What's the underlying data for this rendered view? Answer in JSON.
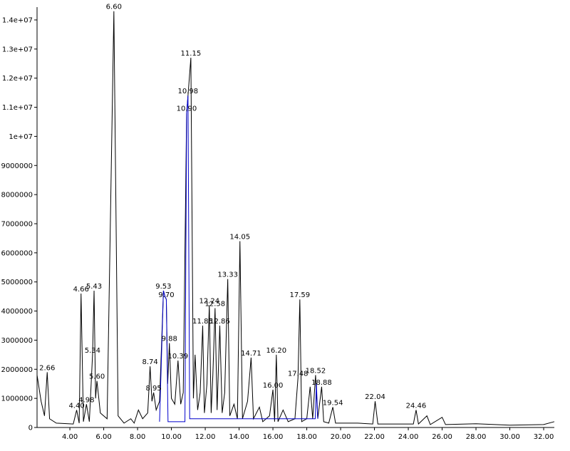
{
  "chart_data": {
    "type": "line",
    "xlim": [
      2.06,
      32.63
    ],
    "ylim": [
      0,
      14440000
    ],
    "xticks": [
      {
        "value": 4,
        "label": "4.00"
      },
      {
        "value": 6,
        "label": "6.00"
      },
      {
        "value": 8,
        "label": "8.00"
      },
      {
        "value": 10,
        "label": "10.00"
      },
      {
        "value": 12,
        "label": "12.00"
      },
      {
        "value": 14,
        "label": "14.00"
      },
      {
        "value": 16,
        "label": "16.00"
      },
      {
        "value": 18,
        "label": "18.00"
      },
      {
        "value": 20,
        "label": "20.00"
      },
      {
        "value": 22,
        "label": "22.00"
      },
      {
        "value": 24,
        "label": "24.00"
      },
      {
        "value": 26,
        "label": "26.00"
      },
      {
        "value": 28,
        "label": "28.00"
      },
      {
        "value": 30,
        "label": "30.00"
      },
      {
        "value": 32,
        "label": "32.00"
      }
    ],
    "yticks": [
      0,
      1000000,
      2000000,
      3000000,
      4000000,
      5000000,
      6000000,
      7000000,
      8000000,
      9000000,
      {
        "value": 10000000,
        "label": "1e+07"
      },
      {
        "value": 11000000,
        "label": "1.1e+07"
      },
      {
        "value": 12000000,
        "label": "1.2e+07"
      },
      {
        "value": 13000000,
        "label": "1.3e+07"
      },
      {
        "value": 14000000,
        "label": "1.4e+07"
      }
    ],
    "series": [
      {
        "color": "#000000",
        "x": [
          2.06,
          2.3,
          2.5,
          2.66,
          2.8,
          3.2,
          4.2,
          4.4,
          4.55,
          4.66,
          4.8,
          4.98,
          5.15,
          5.34,
          5.43,
          5.52,
          5.6,
          5.8,
          6.2,
          6.6,
          6.85,
          7.2,
          7.6,
          7.8,
          8.05,
          8.3,
          8.6,
          8.74,
          8.85,
          8.95,
          9.1,
          9.3,
          9.53,
          9.62,
          9.7,
          9.78,
          9.88,
          10.0,
          10.2,
          10.39,
          10.55,
          10.7,
          10.9,
          10.98,
          11.15,
          11.3,
          11.4,
          11.55,
          11.7,
          11.85,
          11.95,
          12.1,
          12.24,
          12.35,
          12.45,
          12.58,
          12.7,
          12.86,
          13.0,
          13.15,
          13.33,
          13.45,
          13.7,
          13.9,
          14.05,
          14.2,
          14.5,
          14.71,
          14.85,
          15.2,
          15.4,
          15.8,
          16.0,
          16.1,
          16.2,
          16.3,
          16.6,
          16.9,
          17.3,
          17.48,
          17.59,
          17.7,
          18.0,
          18.2,
          18.35,
          18.52,
          18.65,
          18.88,
          19.0,
          19.3,
          19.54,
          19.7,
          21.0,
          21.9,
          22.04,
          22.2,
          24.3,
          24.46,
          24.6,
          25.1,
          25.3,
          26.0,
          26.2,
          28.0,
          30.0,
          32.0,
          32.63
        ],
        "values": [
          1800000,
          900000,
          400000,
          1900000,
          300000,
          150000,
          120000,
          600000,
          150000,
          4600000,
          200000,
          800000,
          200000,
          2500000,
          4700000,
          1000000,
          1600000,
          500000,
          300000,
          14300000,
          400000,
          150000,
          300000,
          150000,
          600000,
          300000,
          500000,
          2100000,
          900000,
          1200000,
          600000,
          900000,
          4700000,
          4500000,
          4400000,
          1500000,
          2900000,
          1000000,
          800000,
          2300000,
          800000,
          1200000,
          10800000,
          11400000,
          12700000,
          1000000,
          2500000,
          600000,
          1200000,
          3500000,
          500000,
          1500000,
          4200000,
          500000,
          1800000,
          4100000,
          600000,
          3500000,
          500000,
          1200000,
          5100000,
          400000,
          800000,
          300000,
          6400000,
          300000,
          900000,
          2400000,
          300000,
          700000,
          200000,
          400000,
          1300000,
          200000,
          2500000,
          200000,
          600000,
          200000,
          300000,
          1700000,
          4400000,
          200000,
          300000,
          1400000,
          300000,
          1800000,
          300000,
          1400000,
          200000,
          150000,
          700000,
          150000,
          150000,
          120000,
          900000,
          120000,
          120000,
          600000,
          120000,
          400000,
          100000,
          350000,
          100000,
          130000,
          80000,
          100000,
          200000
        ]
      },
      {
        "color": "#0000cc",
        "x": [
          9.3,
          9.53,
          9.62,
          9.7,
          9.8,
          10.8,
          10.9,
          10.98,
          11.08,
          18.5,
          18.57,
          18.65
        ],
        "values": [
          200000,
          4700000,
          4500000,
          4400000,
          200000,
          200000,
          10800000,
          11400000,
          300000,
          300000,
          1500000,
          300000
        ]
      }
    ],
    "peaks": [
      {
        "label": "2.66",
        "x": 2.66,
        "y": 1900000
      },
      {
        "label": "4.40",
        "x": 4.4,
        "y": 600000
      },
      {
        "label": "4.66",
        "x": 4.66,
        "y": 4600000
      },
      {
        "label": "4.98",
        "x": 4.98,
        "y": 800000
      },
      {
        "label": "5.34",
        "x": 5.34,
        "y": 2500000
      },
      {
        "label": "5.43",
        "x": 5.43,
        "y": 4700000
      },
      {
        "label": "5.60",
        "x": 5.6,
        "y": 1600000
      },
      {
        "label": "6.60",
        "x": 6.6,
        "y": 14300000
      },
      {
        "label": "8.74",
        "x": 8.74,
        "y": 2100000
      },
      {
        "label": "8.95",
        "x": 8.95,
        "y": 1200000
      },
      {
        "label": "9.53",
        "x": 9.53,
        "y": 4700000
      },
      {
        "label": "9.70",
        "x": 9.7,
        "y": 4400000
      },
      {
        "label": "9.88",
        "x": 9.88,
        "y": 2900000
      },
      {
        "label": "10.39",
        "x": 10.39,
        "y": 2300000
      },
      {
        "label": "10.90",
        "x": 10.9,
        "y": 10800000
      },
      {
        "label": "10.98",
        "x": 10.98,
        "y": 11400000
      },
      {
        "label": "11.15",
        "x": 11.15,
        "y": 12700000
      },
      {
        "label": "11.85",
        "x": 11.85,
        "y": 3500000
      },
      {
        "label": "12.24",
        "x": 12.24,
        "y": 4200000
      },
      {
        "label": "12.58",
        "x": 12.58,
        "y": 4100000
      },
      {
        "label": "12.86",
        "x": 12.86,
        "y": 3500000
      },
      {
        "label": "13.33",
        "x": 13.33,
        "y": 5100000
      },
      {
        "label": "14.05",
        "x": 14.05,
        "y": 6400000
      },
      {
        "label": "14.71",
        "x": 14.71,
        "y": 2400000
      },
      {
        "label": "16.00",
        "x": 16.0,
        "y": 1300000
      },
      {
        "label": "16.20",
        "x": 16.2,
        "y": 2500000
      },
      {
        "label": "17.48",
        "x": 17.48,
        "y": 1700000
      },
      {
        "label": "17.59",
        "x": 17.59,
        "y": 4400000
      },
      {
        "label": "18.52",
        "x": 18.52,
        "y": 1800000
      },
      {
        "label": "18.88",
        "x": 18.88,
        "y": 1400000
      },
      {
        "label": "19.54",
        "x": 19.54,
        "y": 700000
      },
      {
        "label": "22.04",
        "x": 22.04,
        "y": 900000
      },
      {
        "label": "24.46",
        "x": 24.46,
        "y": 600000
      }
    ]
  }
}
